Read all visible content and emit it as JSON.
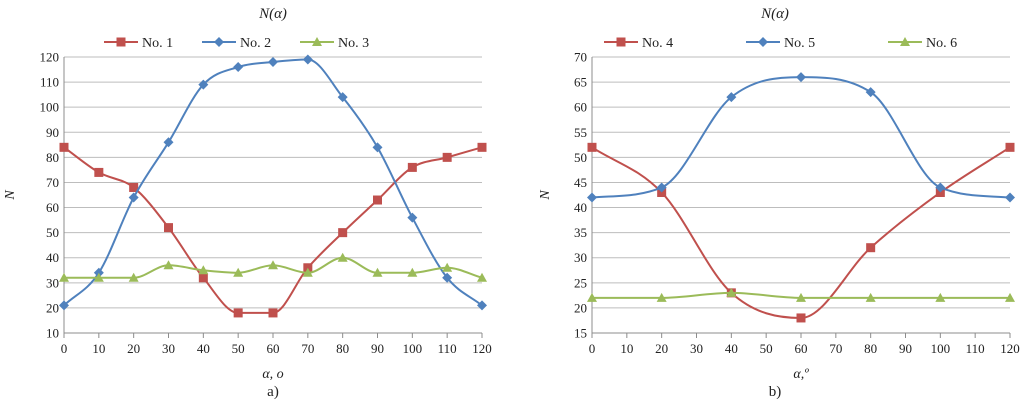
{
  "chart_data": [
    {
      "type": "line",
      "title": "N(α)",
      "xlabel": "α, o",
      "ylabel": "N",
      "caption": "a)",
      "x": [
        0,
        10,
        20,
        30,
        40,
        50,
        60,
        70,
        80,
        90,
        100,
        110,
        120
      ],
      "xlim": [
        0,
        120
      ],
      "ylim": [
        10,
        120
      ],
      "yticks": [
        10,
        20,
        30,
        40,
        50,
        60,
        70,
        80,
        90,
        100,
        110,
        120
      ],
      "grid": true,
      "legend": "top",
      "series": [
        {
          "name": "No. 1",
          "color": "#c0504d",
          "marker": "square",
          "values": [
            84,
            74,
            68,
            52,
            32,
            18,
            18,
            36,
            50,
            63,
            76,
            80,
            84
          ]
        },
        {
          "name": "No. 2",
          "color": "#4f81bd",
          "marker": "diamond",
          "values": [
            21,
            34,
            64,
            86,
            109,
            116,
            118,
            119,
            104,
            84,
            56,
            32,
            21
          ]
        },
        {
          "name": "No. 3",
          "color": "#9bbb59",
          "marker": "triangle",
          "values": [
            32,
            32,
            32,
            37,
            35,
            34,
            37,
            34,
            40,
            34,
            34,
            36,
            32
          ]
        }
      ]
    },
    {
      "type": "line",
      "title": "N(α)",
      "xlabel": "α,º",
      "ylabel": "N",
      "caption": "b)",
      "x": [
        0,
        20,
        40,
        60,
        80,
        100,
        120
      ],
      "xticks": [
        0,
        10,
        20,
        30,
        40,
        50,
        60,
        70,
        80,
        90,
        100,
        110,
        120
      ],
      "xlim": [
        0,
        120
      ],
      "ylim": [
        15,
        70
      ],
      "yticks": [
        15,
        20,
        25,
        30,
        35,
        40,
        45,
        50,
        55,
        60,
        65,
        70
      ],
      "grid": true,
      "legend": "top",
      "series": [
        {
          "name": "No. 4",
          "color": "#c0504d",
          "marker": "square",
          "values": [
            52,
            43,
            23,
            18,
            32,
            43,
            52
          ]
        },
        {
          "name": "No. 5",
          "color": "#4f81bd",
          "marker": "diamond",
          "values": [
            42,
            44,
            62,
            66,
            63,
            44,
            42
          ]
        },
        {
          "name": "No. 6",
          "color": "#9bbb59",
          "marker": "triangle",
          "values": [
            22,
            22,
            23,
            22,
            22,
            22,
            22
          ]
        }
      ]
    }
  ]
}
